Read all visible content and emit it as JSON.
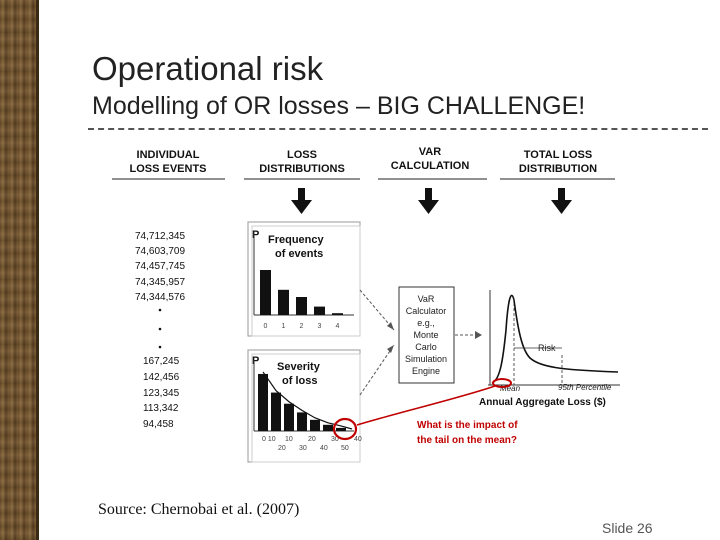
{
  "slide": {
    "title": "Operational risk",
    "subtitle": "Modelling of OR losses – BIG CHALLENGE!",
    "source": "Source: Chernobai et al.  (2007)",
    "slide_number": "Slide 26"
  },
  "diagram": {
    "columns": [
      {
        "line1": "INDIVIDUAL",
        "line2": "LOSS EVENTS"
      },
      {
        "line1": "LOSS",
        "line2": "DISTRIBUTIONS"
      },
      {
        "line1": "VAR",
        "line2": "CALCULATION"
      },
      {
        "line1": "TOTAL LOSS",
        "line2": "DISTRIBUTION"
      }
    ],
    "loss_values_top": [
      "74,712,345",
      "74,603,709",
      "74,457,745",
      "74,345,957",
      "74,344,576"
    ],
    "loss_values_bottom": [
      "167,245",
      "142,456",
      "123,345",
      "113,342",
      "94,458"
    ],
    "frequency": {
      "axis_letter": "P",
      "label_line1": "Frequency",
      "label_line2": "of events",
      "ticks": [
        "0",
        "1",
        "2",
        "3",
        "4"
      ],
      "values": [
        0.75,
        0.42,
        0.3,
        0.14,
        0.03
      ]
    },
    "severity": {
      "axis_letter": "P",
      "label_line1": "Severity",
      "label_line2": "of loss",
      "ticks_top": [
        "0 10",
        "10",
        "20",
        "30",
        "40"
      ],
      "ticks_bottom": [
        "20",
        "30",
        "40",
        "50"
      ],
      "values": [
        0.92,
        0.62,
        0.44,
        0.3,
        0.18,
        0.1,
        0.05
      ]
    },
    "var_box": [
      "VaR",
      "Calculator",
      "e.g.,",
      "Monte",
      "Carlo",
      "Simulation",
      "Engine"
    ],
    "total_loss": {
      "risk_label": "Risk",
      "mean_label": "Mean",
      "percentile_label": "95th Percentile",
      "x_label": "Annual Aggregate Loss ($)"
    },
    "question_line1": "What is the impact of",
    "question_line2": "the tail on the mean?",
    "colors": {
      "accent_red": "#c00000",
      "border_brown": "#6b4e2a"
    }
  }
}
